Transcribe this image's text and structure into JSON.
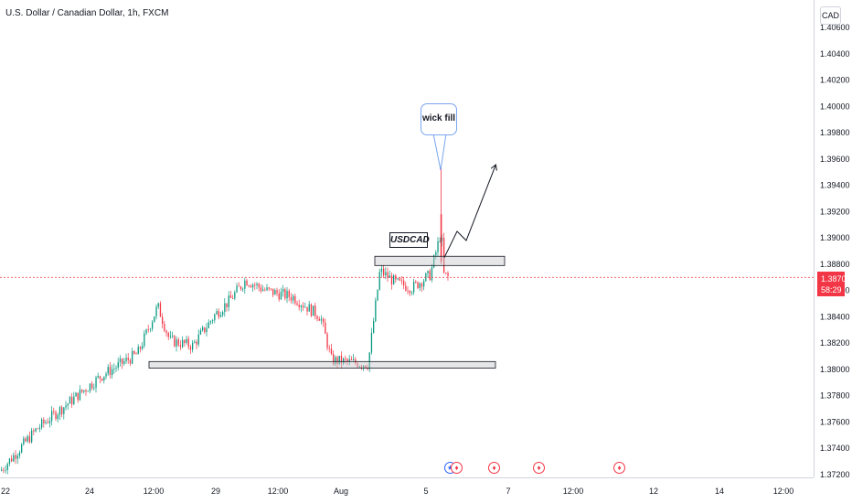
{
  "header": {
    "title": "U.S. Dollar / Canadian Dollar, 1h, FXCM",
    "currency_button": "CAD"
  },
  "price_tag": {
    "price": "1.38700",
    "countdown": "58:29"
  },
  "annotations": {
    "bubble_text": "wick fill",
    "label_text": "USDCAD"
  },
  "events": [
    "us-flag-icon",
    "ca-flag-icon",
    "ca-flag-icon",
    "ca-flag-icon",
    "ca-flag-icon"
  ],
  "colors": {
    "up": "#089981",
    "down": "#f23645",
    "accent": "#2962ff"
  },
  "chart_data": {
    "type": "candlestick",
    "symbol": "USDCAD",
    "interval": "1h",
    "current_price": 1.387,
    "y_ticks": [
      "1.40600",
      "1.40400",
      "1.40200",
      "1.40000",
      "1.39800",
      "1.39600",
      "1.39400",
      "1.39200",
      "1.39000",
      "1.38800",
      "1.38600",
      "1.38400",
      "1.38200",
      "1.38000",
      "1.37800",
      "1.37600",
      "1.37400",
      "1.37200"
    ],
    "x_ticks": [
      "22",
      "24",
      "12:00",
      "29",
      "12:00",
      "Aug",
      "5",
      "7",
      "12:00",
      "12",
      "14",
      "12:00"
    ],
    "ylim": [
      1.3718,
      1.4065
    ],
    "trend_path": [
      [
        1.3723,
        1.3755,
        1.3795,
        1.3812,
        1.3848,
        1.3822,
        1.3818,
        1.3842,
        1.3852,
        1.3868,
        1.386,
        1.3855,
        1.384,
        1.3807,
        1.3804,
        1.3875,
        1.3866,
        1.3862,
        1.3872,
        1.3905,
        1.3872,
        1.387
      ]
    ],
    "zones": [
      {
        "name": "support",
        "low": 1.3801,
        "high": 1.3806
      },
      {
        "name": "resistance",
        "low": 1.3879,
        "high": 1.3886
      }
    ],
    "wick_high": 1.3955,
    "arrow_target": 1.3955
  }
}
